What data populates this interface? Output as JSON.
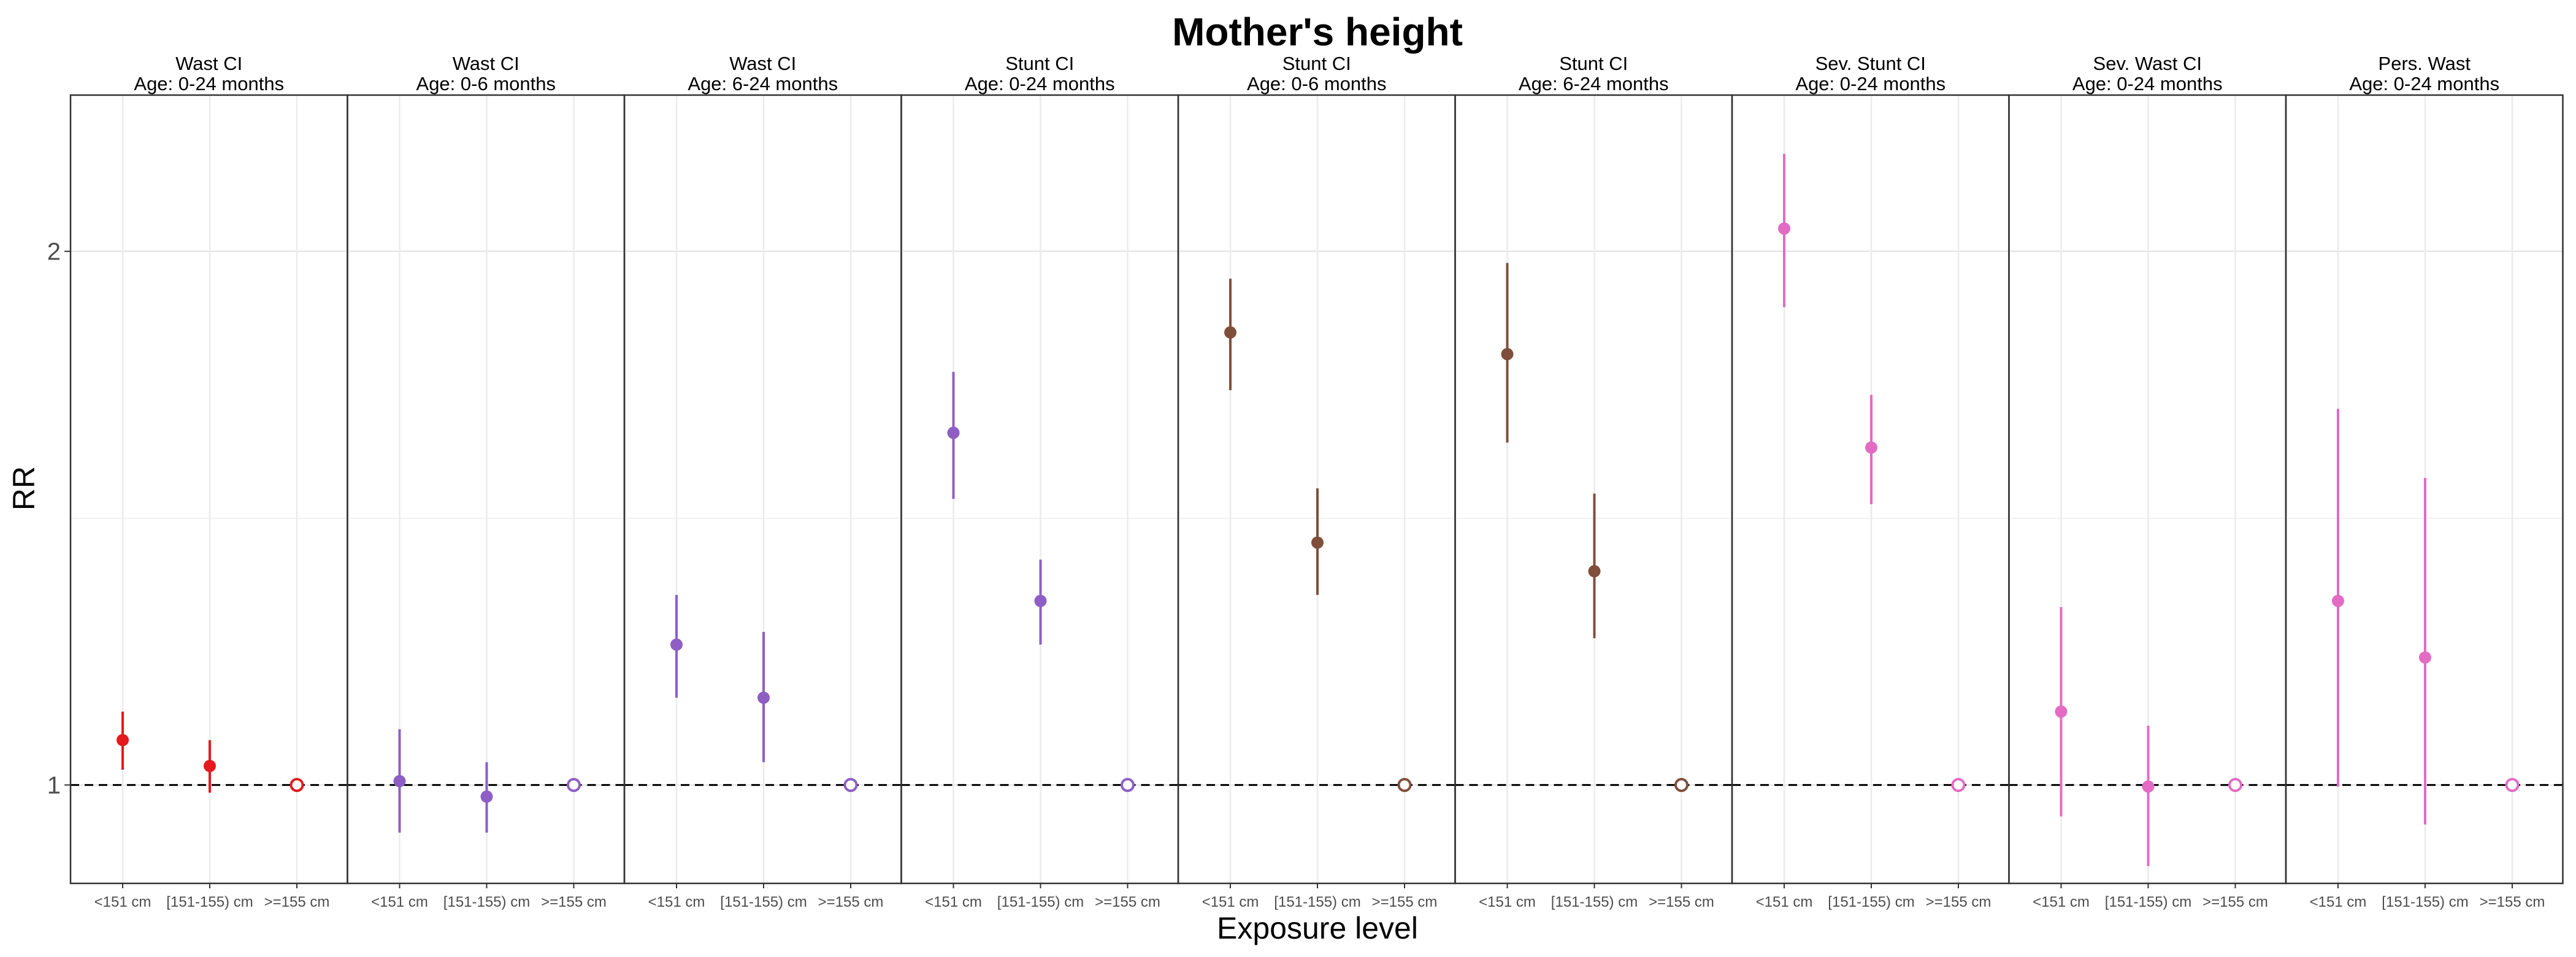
{
  "chart_data": {
    "type": "scatter",
    "title": "Mother's height",
    "xlabel": "Exposure level",
    "ylabel": "RR",
    "y_scale": "log",
    "ylim": [
      0.88,
      2.45
    ],
    "y_ticks": [
      {
        "value": 1,
        "label": "1"
      },
      {
        "value": 2,
        "label": "2"
      }
    ],
    "y_minor_gridlines": [
      1.414
    ],
    "reference_line": 1,
    "grid": true,
    "categories": [
      "<151 cm",
      "[151-155) cm",
      ">=155 cm"
    ],
    "reference_category": ">=155 cm",
    "panels": [
      {
        "title": "Wast CI",
        "subtitle": "Age: 0-24 months",
        "color": "#e41a1c",
        "points": [
          {
            "x": "<151 cm",
            "y": 1.06,
            "lo": 1.02,
            "hi": 1.1
          },
          {
            "x": "[151-155) cm",
            "y": 1.025,
            "lo": 0.99,
            "hi": 1.06
          },
          {
            "x": ">=155 cm",
            "y": 1.0,
            "ref": true
          }
        ]
      },
      {
        "title": "Wast CI",
        "subtitle": "Age: 0-6 months",
        "color": "#8e5ec4",
        "points": [
          {
            "x": "<151 cm",
            "y": 1.005,
            "lo": 0.94,
            "hi": 1.075
          },
          {
            "x": "[151-155) cm",
            "y": 0.985,
            "lo": 0.94,
            "hi": 1.03
          },
          {
            "x": ">=155 cm",
            "y": 1.0,
            "ref": true
          }
        ]
      },
      {
        "title": "Wast CI",
        "subtitle": "Age: 6-24 months",
        "color": "#8e5ec4",
        "points": [
          {
            "x": "<151 cm",
            "y": 1.2,
            "lo": 1.12,
            "hi": 1.28
          },
          {
            "x": "[151-155) cm",
            "y": 1.12,
            "lo": 1.03,
            "hi": 1.22
          },
          {
            "x": ">=155 cm",
            "y": 1.0,
            "ref": true
          }
        ]
      },
      {
        "title": "Stunt CI",
        "subtitle": "Age: 0-24 months",
        "color": "#8e5ec4",
        "points": [
          {
            "x": "<151 cm",
            "y": 1.58,
            "lo": 1.45,
            "hi": 1.71
          },
          {
            "x": "[151-155) cm",
            "y": 1.27,
            "lo": 1.2,
            "hi": 1.34
          },
          {
            "x": ">=155 cm",
            "y": 1.0,
            "ref": true
          }
        ]
      },
      {
        "title": "Stunt CI",
        "subtitle": "Age: 0-6 months",
        "color": "#7f4f3c",
        "points": [
          {
            "x": "<151 cm",
            "y": 1.8,
            "lo": 1.67,
            "hi": 1.93
          },
          {
            "x": "[151-155) cm",
            "y": 1.37,
            "lo": 1.28,
            "hi": 1.47
          },
          {
            "x": ">=155 cm",
            "y": 1.0,
            "ref": true
          }
        ]
      },
      {
        "title": "Stunt CI",
        "subtitle": "Age: 6-24 months",
        "color": "#7f4f3c",
        "points": [
          {
            "x": "<151 cm",
            "y": 1.75,
            "lo": 1.56,
            "hi": 1.97
          },
          {
            "x": "[151-155) cm",
            "y": 1.32,
            "lo": 1.21,
            "hi": 1.46
          },
          {
            "x": ">=155 cm",
            "y": 1.0,
            "ref": true
          }
        ]
      },
      {
        "title": "Sev. Stunt CI",
        "subtitle": "Age: 0-24 months",
        "color": "#e36bc4",
        "points": [
          {
            "x": "<151 cm",
            "y": 2.06,
            "lo": 1.86,
            "hi": 2.27
          },
          {
            "x": "[151-155) cm",
            "y": 1.55,
            "lo": 1.44,
            "hi": 1.66
          },
          {
            "x": ">=155 cm",
            "y": 1.0,
            "ref": true
          }
        ]
      },
      {
        "title": "Sev. Wast CI",
        "subtitle": "Age: 0-24 months",
        "color": "#e36bc4",
        "points": [
          {
            "x": "<151 cm",
            "y": 1.1,
            "lo": 0.96,
            "hi": 1.26
          },
          {
            "x": "[151-155) cm",
            "y": 0.998,
            "lo": 0.9,
            "hi": 1.08
          },
          {
            "x": ">=155 cm",
            "y": 1.0,
            "ref": true
          }
        ]
      },
      {
        "title": "Pers. Wast",
        "subtitle": "Age: 0-24 months",
        "color": "#e36bc4",
        "points": [
          {
            "x": "<151 cm",
            "y": 1.27,
            "lo": 0.998,
            "hi": 1.63
          },
          {
            "x": "[151-155) cm",
            "y": 1.18,
            "lo": 0.95,
            "hi": 1.49
          },
          {
            "x": ">=155 cm",
            "y": 1.0,
            "ref": true
          }
        ]
      }
    ]
  }
}
